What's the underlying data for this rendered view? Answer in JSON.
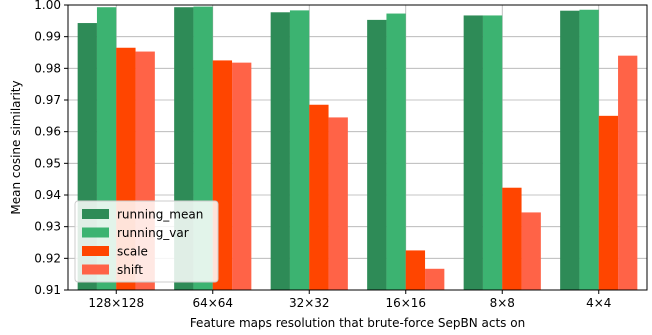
{
  "chart_data": {
    "type": "bar",
    "categories": [
      "128×128",
      "64×64",
      "32×32",
      "16×16",
      "8×8",
      "4×4"
    ],
    "series": [
      {
        "name": "running_mean",
        "color": "#2e8b57",
        "values": [
          0.9943,
          0.9993,
          0.9977,
          0.9953,
          0.9967,
          0.9982
        ]
      },
      {
        "name": "running_var",
        "color": "#3cb371",
        "values": [
          0.9993,
          0.9995,
          0.9983,
          0.9973,
          0.9967,
          0.9985
        ]
      },
      {
        "name": "scale",
        "color": "#ff4500",
        "values": [
          0.9865,
          0.9825,
          0.9685,
          0.9225,
          0.9423,
          0.965
        ]
      },
      {
        "name": "shift",
        "color": "#ff6347",
        "values": [
          0.9853,
          0.9818,
          0.9645,
          0.9167,
          0.9345,
          0.984
        ]
      }
    ],
    "xlabel": "Feature maps resolution that brute-force SepBN acts on",
    "ylabel": "Mean cosine similarity",
    "ylim": [
      0.91,
      1.0
    ],
    "yticks": [
      0.91,
      0.92,
      0.93,
      0.94,
      0.95,
      0.96,
      0.97,
      0.98,
      0.99,
      1.0
    ],
    "ytick_labels": [
      "0.91",
      "0.92",
      "0.93",
      "0.94",
      "0.95",
      "0.96",
      "0.97",
      "0.98",
      "0.99",
      "1.00"
    ],
    "grid": true,
    "legend_position": "lower-left"
  }
}
